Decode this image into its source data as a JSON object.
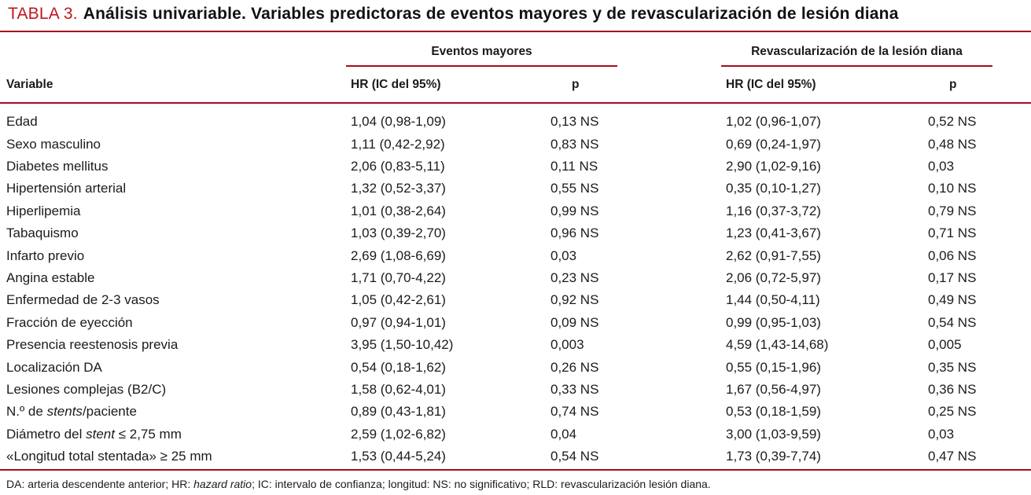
{
  "title": {
    "label": "TABLA 3.",
    "text": "Análisis univariable. Variables predictoras de eventos mayores y de revascularización de lesión diana"
  },
  "colors": {
    "accent_red_rule": "#a30d1c",
    "title_red": "#bf161c"
  },
  "table": {
    "group_headers": [
      "Eventos mayores",
      "Revascularización de la lesión diana"
    ],
    "column_headers": {
      "variable": "Variable",
      "hr": "HR (IC del 95%)",
      "p": "p"
    },
    "rows": [
      {
        "variable": [
          {
            "t": "Edad"
          }
        ],
        "em_hr": "1,04 (0,98-1,09)",
        "em_p": "0,13 NS",
        "rld_hr": "1,02 (0,96-1,07)",
        "rld_p": "0,52 NS"
      },
      {
        "variable": [
          {
            "t": "Sexo masculino"
          }
        ],
        "em_hr": "1,11 (0,42-2,92)",
        "em_p": "0,83 NS",
        "rld_hr": "0,69 (0,24-1,97)",
        "rld_p": "0,48 NS"
      },
      {
        "variable": [
          {
            "t": "Diabetes mellitus"
          }
        ],
        "em_hr": "2,06 (0,83-5,11)",
        "em_p": "0,11 NS",
        "rld_hr": "2,90 (1,02-9,16)",
        "rld_p": "0,03"
      },
      {
        "variable": [
          {
            "t": "Hipertensión arterial"
          }
        ],
        "em_hr": "1,32 (0,52-3,37)",
        "em_p": "0,55 NS",
        "rld_hr": "0,35 (0,10-1,27)",
        "rld_p": "0,10 NS"
      },
      {
        "variable": [
          {
            "t": "Hiperlipemia"
          }
        ],
        "em_hr": "1,01 (0,38-2,64)",
        "em_p": "0,99 NS",
        "rld_hr": "1,16 (0,37-3,72)",
        "rld_p": "0,79 NS"
      },
      {
        "variable": [
          {
            "t": "Tabaquismo"
          }
        ],
        "em_hr": "1,03 (0,39-2,70)",
        "em_p": "0,96 NS",
        "rld_hr": "1,23 (0,41-3,67)",
        "rld_p": "0,71 NS"
      },
      {
        "variable": [
          {
            "t": "Infarto previo"
          }
        ],
        "em_hr": "2,69 (1,08-6,69)",
        "em_p": "0,03",
        "rld_hr": "2,62 (0,91-7,55)",
        "rld_p": "0,06 NS"
      },
      {
        "variable": [
          {
            "t": "Angina estable"
          }
        ],
        "em_hr": "1,71 (0,70-4,22)",
        "em_p": "0,23 NS",
        "rld_hr": "2,06 (0,72-5,97)",
        "rld_p": "0,17 NS"
      },
      {
        "variable": [
          {
            "t": "Enfermedad de 2-3 vasos"
          }
        ],
        "em_hr": "1,05 (0,42-2,61)",
        "em_p": "0,92 NS",
        "rld_hr": "1,44 (0,50-4,11)",
        "rld_p": "0,49 NS"
      },
      {
        "variable": [
          {
            "t": "Fracción de eyección"
          }
        ],
        "em_hr": "0,97 (0,94-1,01)",
        "em_p": "0,09 NS",
        "rld_hr": "0,99 (0,95-1,03)",
        "rld_p": "0,54 NS"
      },
      {
        "variable": [
          {
            "t": "Presencia reestenosis previa"
          }
        ],
        "em_hr": "3,95 (1,50-10,42)",
        "em_p": "0,003",
        "rld_hr": "4,59 (1,43-14,68)",
        "rld_p": "0,005"
      },
      {
        "variable": [
          {
            "t": "Localización DA"
          }
        ],
        "em_hr": "0,54 (0,18-1,62)",
        "em_p": "0,26 NS",
        "rld_hr": "0,55 (0,15-1,96)",
        "rld_p": "0,35 NS"
      },
      {
        "variable": [
          {
            "t": "Lesiones complejas (B2/C)"
          }
        ],
        "em_hr": "1,58 (0,62-4,01)",
        "em_p": "0,33 NS",
        "rld_hr": "1,67 (0,56-4,97)",
        "rld_p": "0,36 NS"
      },
      {
        "variable": [
          {
            "t": "N.º de "
          },
          {
            "t": "stents",
            "i": true
          },
          {
            "t": "/paciente"
          }
        ],
        "em_hr": "0,89 (0,43-1,81)",
        "em_p": "0,74 NS",
        "rld_hr": "0,53 (0,18-1,59)",
        "rld_p": "0,25 NS"
      },
      {
        "variable": [
          {
            "t": "Diámetro del "
          },
          {
            "t": "stent",
            "i": true
          },
          {
            "t": " ≤ 2,75 mm"
          }
        ],
        "em_hr": "2,59 (1,02-6,82)",
        "em_p": "0,04",
        "rld_hr": "3,00 (1,03-9,59)",
        "rld_p": "0,03"
      },
      {
        "variable": [
          {
            "t": "«Longitud total stentada» ≥ 25 mm"
          }
        ],
        "em_hr": "1,53 (0,44-5,24)",
        "em_p": "0,54 NS",
        "rld_hr": "1,73 (0,39-7,74)",
        "rld_p": "0,47 NS"
      }
    ]
  },
  "footnote": [
    {
      "t": "DA: arteria descendente anterior; HR: "
    },
    {
      "t": "hazard ratio",
      "i": true
    },
    {
      "t": "; IC: intervalo de confianza; longitud: NS: no significativo; RLD: revascularización lesión diana."
    }
  ]
}
